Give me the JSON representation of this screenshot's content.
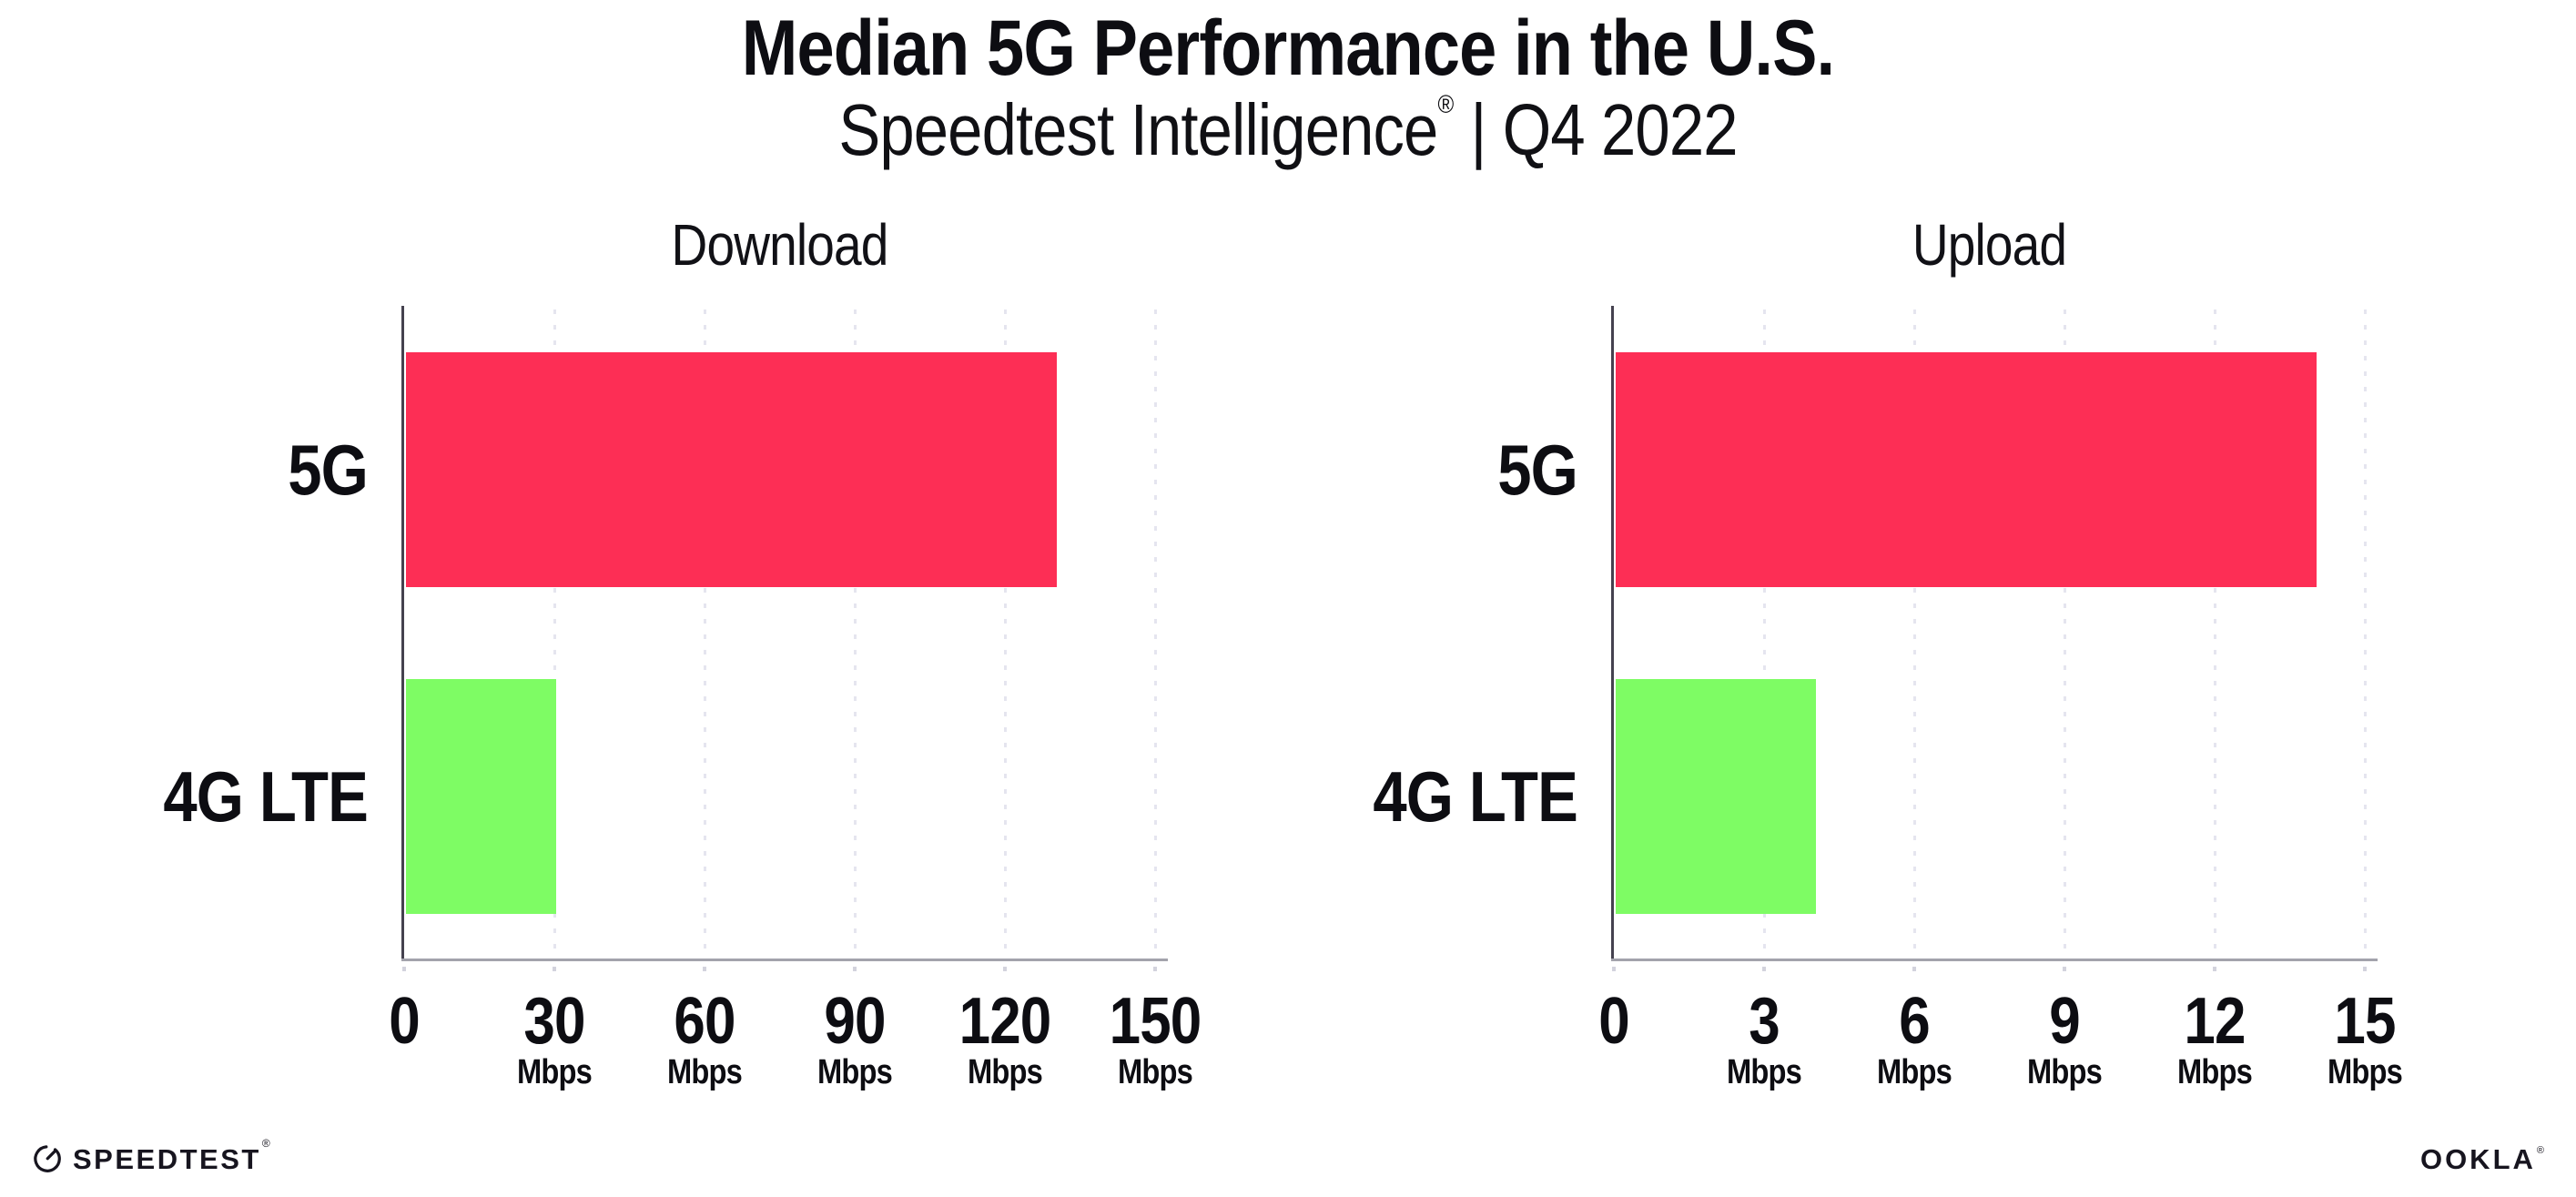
{
  "header": {
    "title": "Median 5G Performance in the U.S.",
    "subtitle_brand": "Speedtest Intelligence",
    "subtitle_reg": "®",
    "subtitle_rest": " | Q4 2022"
  },
  "colors": {
    "bar_5g": "#FD2E55",
    "bar_4g_lte": "#7EFC64",
    "grid_dots": "#E5E5EF",
    "axis_y": "#45424F",
    "axis_x": "#A3A3AC",
    "text": "#0D0D12",
    "logo_ink": "#17151F"
  },
  "chart_data": [
    {
      "type": "bar",
      "orientation": "horizontal",
      "title": "Download",
      "categories": [
        "5G",
        "4G LTE"
      ],
      "values": [
        130,
        30
      ],
      "unit": "Mbps",
      "xlim": [
        0,
        150
      ],
      "xticks": [
        0,
        30,
        60,
        90,
        120,
        150
      ],
      "tick_unit_label": "Mbps",
      "unit_shown_on_zero_tick": false,
      "bar_colors": [
        "#FD2E55",
        "#7EFC64"
      ],
      "grid": "dotted-vertical",
      "legend": "none"
    },
    {
      "type": "bar",
      "orientation": "horizontal",
      "title": "Upload",
      "categories": [
        "5G",
        "4G LTE"
      ],
      "values": [
        14,
        4
      ],
      "unit": "Mbps",
      "xlim": [
        0,
        15
      ],
      "xticks": [
        0,
        3,
        6,
        9,
        12,
        15
      ],
      "tick_unit_label": "Mbps",
      "unit_shown_on_zero_tick": false,
      "bar_colors": [
        "#FD2E55",
        "#7EFC64"
      ],
      "grid": "dotted-vertical",
      "legend": "none"
    }
  ],
  "footer": {
    "speedtest_label": "SPEEDTEST",
    "speedtest_mark": "®",
    "ookla_label": "OOKLA",
    "ookla_mark": "®"
  }
}
